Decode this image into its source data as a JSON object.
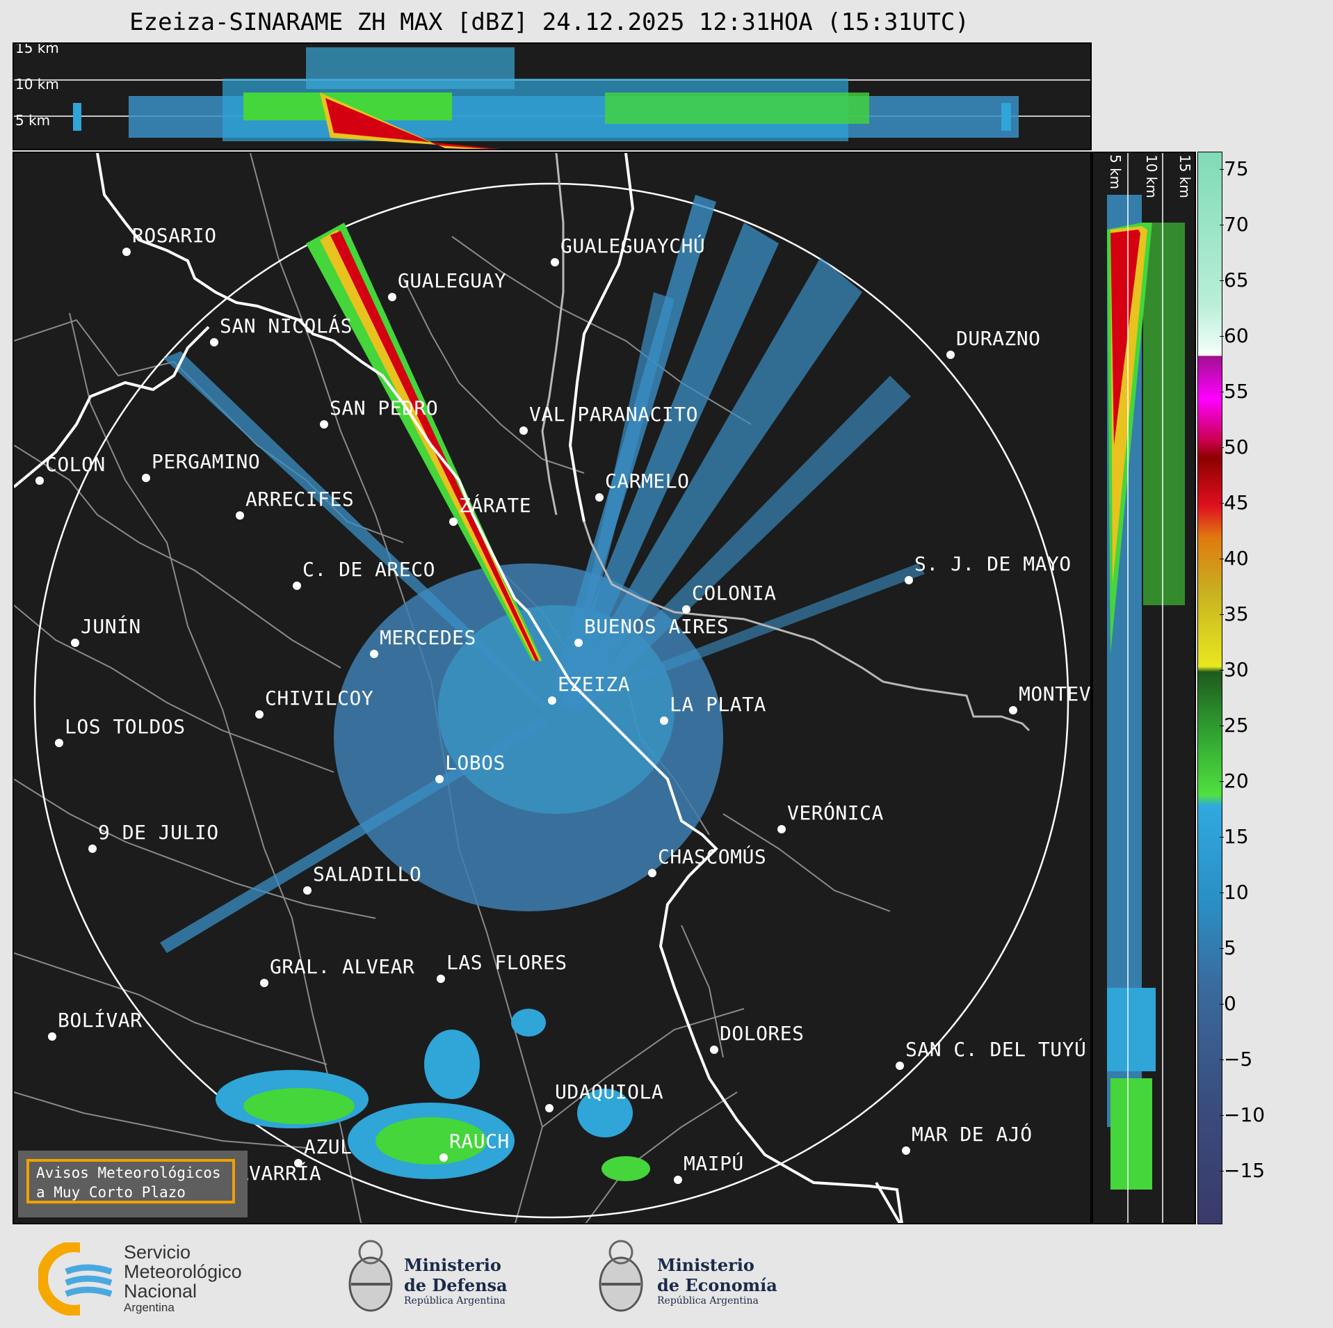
{
  "title": "Ezeiza-SINARAME ZH MAX [dBZ] 24.12.2025 12:31HOA (15:31UTC)",
  "top_panel": {
    "heights": [
      "15 km",
      "10 km",
      "5 km"
    ]
  },
  "side_panel": {
    "heights": [
      "5 km",
      "10 km",
      "15 km"
    ]
  },
  "colorbar": {
    "unit": "dBZ",
    "ticks": [
      "75",
      "70",
      "65",
      "60",
      "55",
      "50",
      "45",
      "40",
      "35",
      "30",
      "25",
      "20",
      "15",
      "10",
      "5",
      "0",
      "−5",
      "−10",
      "−15"
    ]
  },
  "cities": [
    {
      "name": "ROSARIO"
    },
    {
      "name": "SAN NICOLÁS"
    },
    {
      "name": "SAN PEDRO"
    },
    {
      "name": "GUALEGUAY"
    },
    {
      "name": "GUALEGUAYCHÚ"
    },
    {
      "name": "DURAZNO"
    },
    {
      "name": "VAL PARANACITO"
    },
    {
      "name": "COLON"
    },
    {
      "name": "PERGAMINO"
    },
    {
      "name": "ARRECIFES"
    },
    {
      "name": "ZÁRATE"
    },
    {
      "name": "CARMELO"
    },
    {
      "name": "S. J. DE MAYO"
    },
    {
      "name": "C. DE ARECO"
    },
    {
      "name": "COLONIA"
    },
    {
      "name": "JUNÍN"
    },
    {
      "name": "MERCEDES"
    },
    {
      "name": "BUENOS AIRES"
    },
    {
      "name": "EZEIZA"
    },
    {
      "name": "CHIVILCOY"
    },
    {
      "name": "LA PLATA"
    },
    {
      "name": "MONTEV"
    },
    {
      "name": "LOS TOLDOS"
    },
    {
      "name": "LOBOS"
    },
    {
      "name": "VERÓNICA"
    },
    {
      "name": "9 DE JULIO"
    },
    {
      "name": "CHASCOMÚS"
    },
    {
      "name": "SALADILLO"
    },
    {
      "name": "GRAL. ALVEAR"
    },
    {
      "name": "LAS FLORES"
    },
    {
      "name": "BOLÍVAR"
    },
    {
      "name": "DOLORES"
    },
    {
      "name": "SAN C. DEL TUYÚ"
    },
    {
      "name": "UDAQUIOLA"
    },
    {
      "name": "RAUCH"
    },
    {
      "name": "MAR DE AJÓ"
    },
    {
      "name": "AZUL"
    },
    {
      "name": "OLAVARRÍA"
    },
    {
      "name": "MAIPÚ"
    }
  ],
  "warning_box": {
    "line1": "Avisos Meteorológicos",
    "line2": "a Muy Corto Plazo"
  },
  "logos": {
    "smn": {
      "line1": "Servicio",
      "line2": "Meteorológico",
      "line3": "Nacional",
      "line4": "Argentina"
    },
    "defensa": {
      "line1": "Ministerio",
      "line2": "de Defensa",
      "line3": "República Argentina"
    },
    "economia": {
      "line1": "Ministerio",
      "line2": "de Economía",
      "line3": "República Argentina"
    }
  },
  "colors": {
    "background": "#1c1c1c",
    "coast": "#ffffff",
    "borders": "#8a8a8a",
    "accent": "#f0a000"
  }
}
